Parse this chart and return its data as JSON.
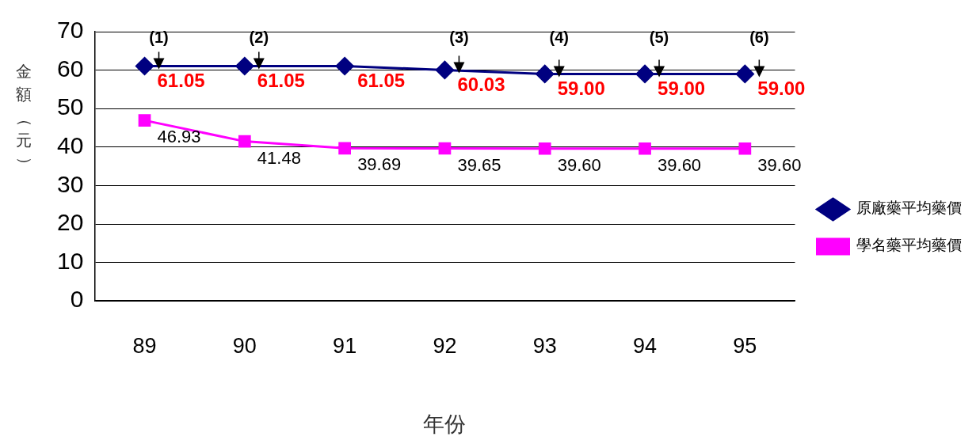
{
  "chart_data": {
    "type": "line",
    "xlabel": "年份",
    "ylabel": "金額（元）",
    "categories": [
      "89",
      "90",
      "91",
      "92",
      "93",
      "94",
      "95"
    ],
    "series": [
      {
        "name": "原廠藥平均藥價",
        "color": "#000080",
        "marker": "diamond",
        "values": [
          61.05,
          61.05,
          61.05,
          60.03,
          59.0,
          59.0,
          59.0
        ],
        "value_labels": [
          "61.05",
          "61.05",
          "61.05",
          "60.03",
          "59.00",
          "59.00",
          "59.00"
        ]
      },
      {
        "name": "學名藥平均藥價",
        "color": "#ff00ff",
        "marker": "square",
        "values": [
          46.93,
          41.48,
          39.69,
          39.65,
          39.6,
          39.6,
          39.6
        ],
        "value_labels": [
          "46.93",
          "41.48",
          "39.69",
          "39.65",
          "39.60",
          "39.60",
          "39.60"
        ]
      }
    ],
    "ylim": [
      0,
      70
    ],
    "yticks": [
      0,
      10,
      20,
      30,
      40,
      50,
      60,
      70
    ],
    "grid": "y",
    "legend": "right",
    "annotations": [
      {
        "text": "(1)",
        "x": "89",
        "y": 61.05
      },
      {
        "text": "(2)",
        "x": "90",
        "y": 61.05
      },
      {
        "text": "(3)",
        "x": "92",
        "y": 60.03
      },
      {
        "text": "(4)",
        "x": "93",
        "y": 59.0
      },
      {
        "text": "(5)",
        "x": "94",
        "y": 59.0
      },
      {
        "text": "(6)",
        "x": "95",
        "y": 59.0
      }
    ]
  }
}
